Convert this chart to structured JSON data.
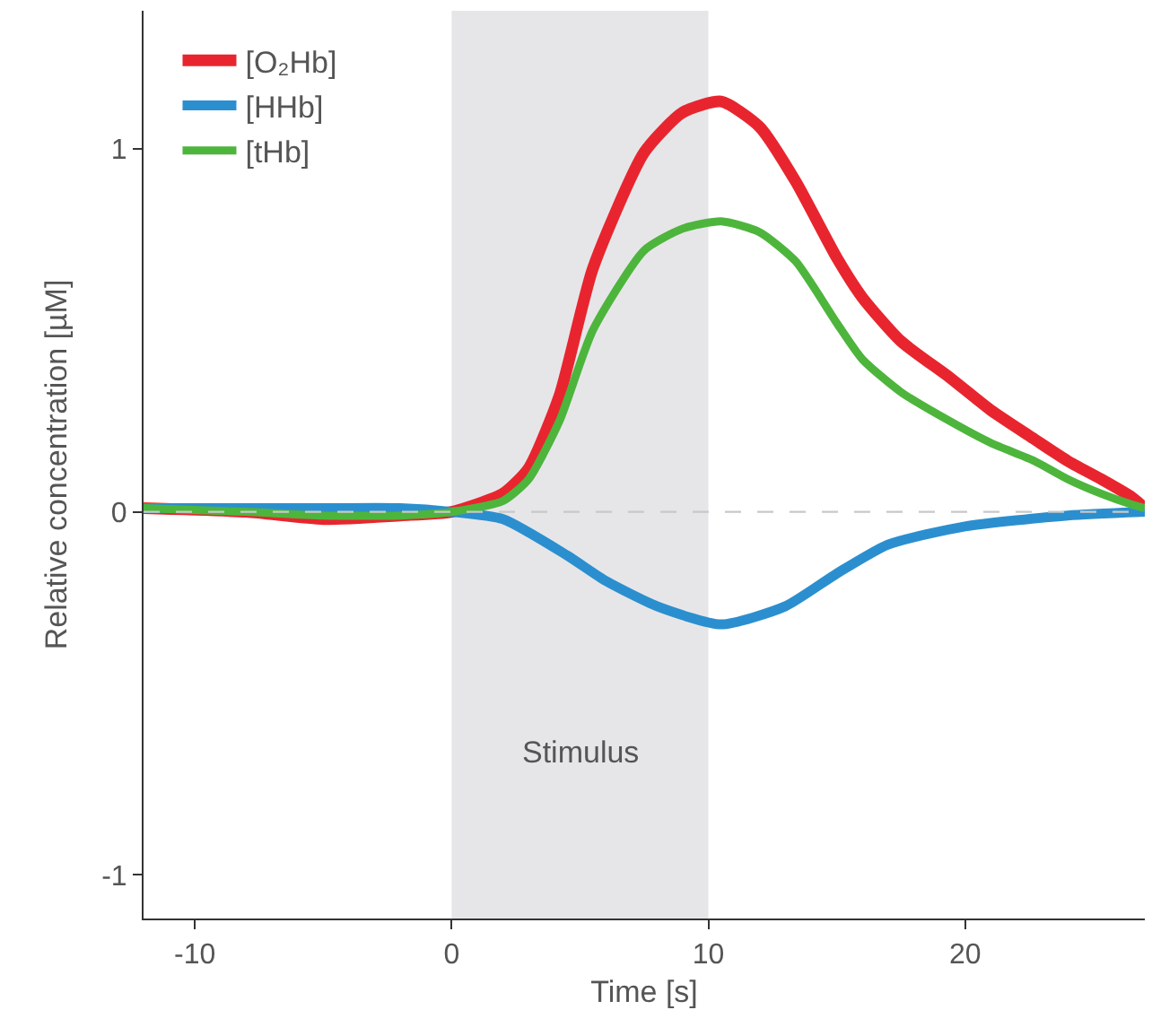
{
  "chart_data": {
    "type": "line",
    "xlabel": "Time [s]",
    "ylabel": "Relative concentration [µM]",
    "xlim": [
      -12,
      27
    ],
    "ylim": [
      -1.12,
      1.38
    ],
    "xticks": [
      -10,
      0,
      10,
      20
    ],
    "yticks": [
      -1,
      0,
      1
    ],
    "grid": false,
    "legend": "top left",
    "marker": "none",
    "line_style": "solid",
    "series": [
      {
        "name": "[O₂Hb]",
        "color": "#e8252e",
        "x": [
          -12,
          -8,
          -5,
          -2,
          0,
          2,
          3,
          4.2,
          5.5,
          7.5,
          9,
          10.5,
          12,
          13.4,
          15,
          16,
          17.5,
          19.4,
          21,
          22.7,
          24,
          25.3,
          26.5,
          27
        ],
        "values": [
          0.01,
          0,
          -0.02,
          -0.01,
          0,
          0.05,
          0.12,
          0.32,
          0.67,
          0.99,
          1.1,
          1.13,
          1.06,
          0.91,
          0.7,
          0.59,
          0.47,
          0.37,
          0.28,
          0.2,
          0.14,
          0.09,
          0.04,
          0.01
        ]
      },
      {
        "name": "[HHb]",
        "color": "#2b8fcf",
        "x": [
          -12,
          -8,
          -5,
          -2,
          0,
          2,
          4.5,
          6,
          8,
          10.5,
          13,
          15,
          17,
          20,
          24,
          27
        ],
        "values": [
          0.01,
          0.01,
          0.01,
          0.01,
          0,
          -0.02,
          -0.12,
          -0.19,
          -0.26,
          -0.31,
          -0.26,
          -0.17,
          -0.09,
          -0.04,
          -0.01,
          0
        ]
      },
      {
        "name": "[tHb]",
        "color": "#4db53c",
        "x": [
          -12,
          -8,
          -5,
          -2,
          0,
          2,
          3,
          4.2,
          5.5,
          7.5,
          9,
          10.5,
          12,
          13.4,
          15,
          16,
          17.5,
          19.4,
          21,
          22.7,
          24,
          25.3,
          26.5,
          27
        ],
        "values": [
          0.01,
          0,
          -0.01,
          -0.01,
          0,
          0.03,
          0.09,
          0.25,
          0.5,
          0.72,
          0.78,
          0.8,
          0.77,
          0.69,
          0.52,
          0.42,
          0.33,
          0.25,
          0.19,
          0.14,
          0.09,
          0.05,
          0.02,
          0.01
        ]
      }
    ],
    "ref_lines": [
      {
        "axis": "y",
        "value": 0,
        "color": "#c8c8c8",
        "line_style": "dashed"
      }
    ],
    "bands": [
      {
        "axis": "x",
        "from": 0,
        "to": 10,
        "label": "Stimulus",
        "color": "#e6e6e9"
      }
    ]
  }
}
